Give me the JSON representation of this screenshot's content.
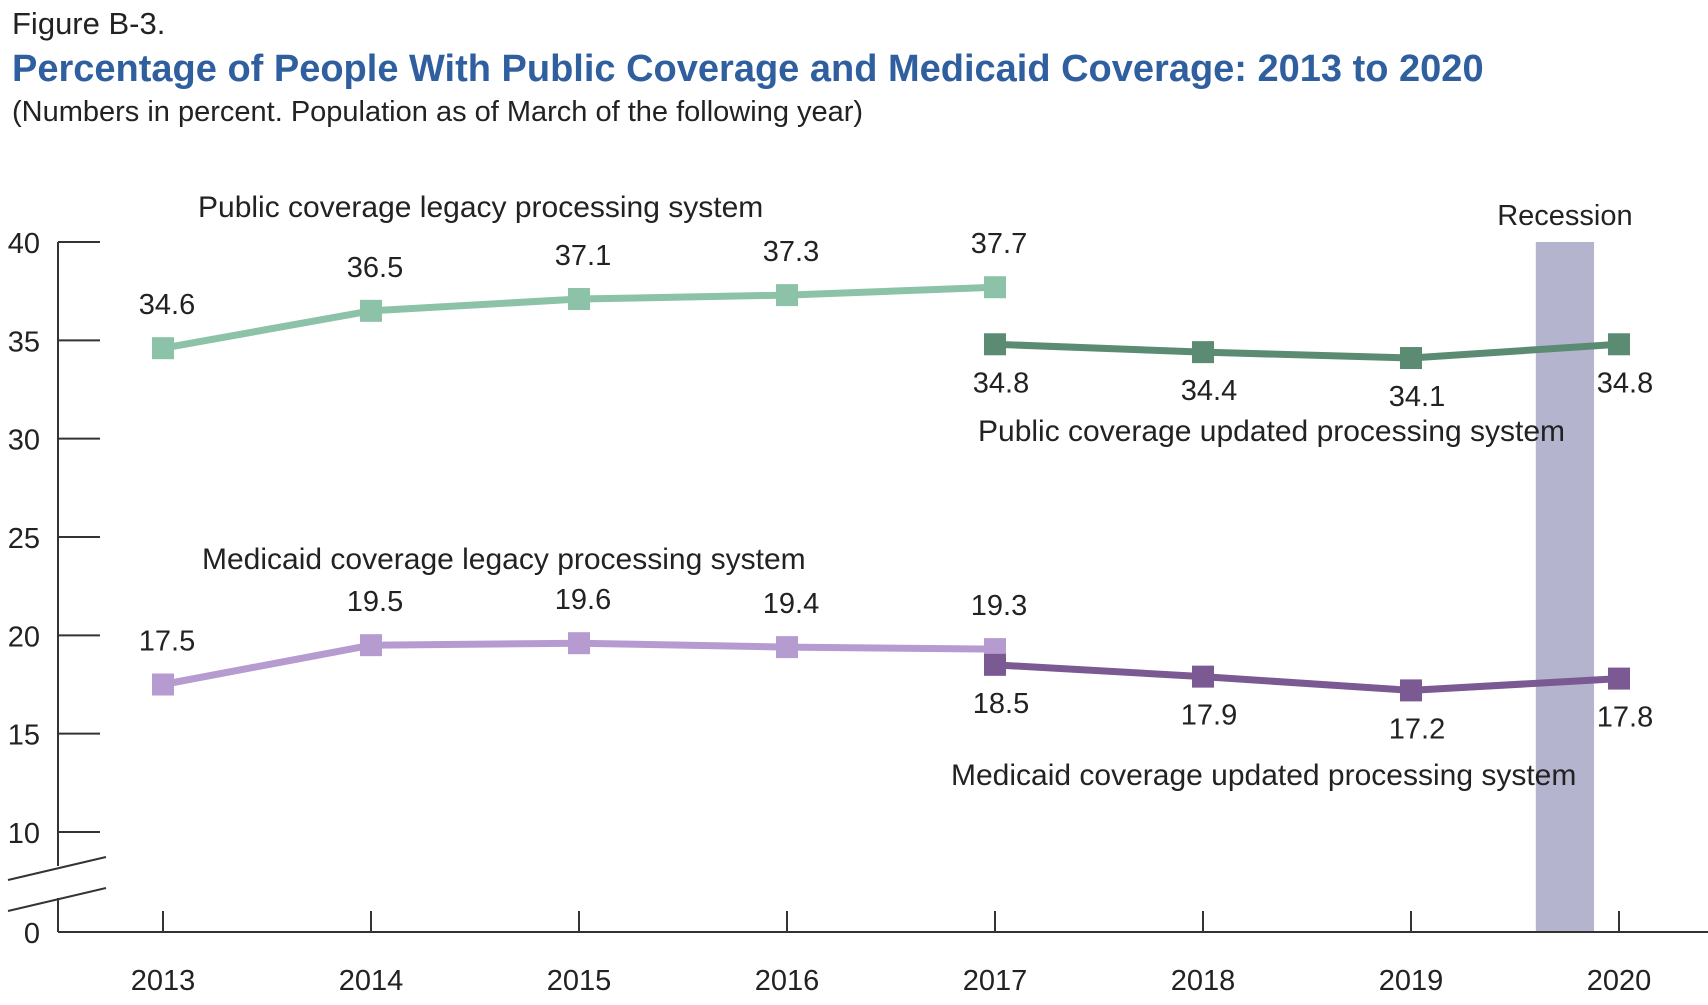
{
  "figure_label": "Figure B-3.",
  "title": "Percentage of People With Public Coverage and Medicaid Coverage: 2013 to 2020",
  "subtitle": "(Numbers in percent. Population as of March of the following year)",
  "colors": {
    "title": "#2f5f9e",
    "public_legacy": "#8cc2a8",
    "public_updated": "#5b8c73",
    "medicaid_legacy": "#b69bd0",
    "medicaid_updated": "#7b5a93",
    "recession": "#b4b4ce",
    "axis": "#333333"
  },
  "chart_data": {
    "type": "line",
    "categories": [
      "2013",
      "2014",
      "2015",
      "2016",
      "2017",
      "2018",
      "2019",
      "2020"
    ],
    "ylim": [
      0,
      40
    ],
    "yticks": [
      0,
      10,
      15,
      20,
      25,
      30,
      35,
      40
    ],
    "axis_break": true,
    "grid": false,
    "series": [
      {
        "name": "Public coverage legacy processing system",
        "x": [
          "2013",
          "2014",
          "2015",
          "2016",
          "2017"
        ],
        "values": [
          34.6,
          36.5,
          37.1,
          37.3,
          37.7
        ],
        "color_key": "public_legacy",
        "label_pos": "above"
      },
      {
        "name": "Public coverage updated processing system",
        "x": [
          "2017",
          "2018",
          "2019",
          "2020"
        ],
        "values": [
          34.8,
          34.4,
          34.1,
          34.8
        ],
        "color_key": "public_updated",
        "label_pos": "below"
      },
      {
        "name": "Medicaid coverage legacy processing system",
        "x": [
          "2013",
          "2014",
          "2015",
          "2016",
          "2017"
        ],
        "values": [
          17.5,
          19.5,
          19.6,
          19.4,
          19.3
        ],
        "color_key": "medicaid_legacy",
        "label_pos": "above"
      },
      {
        "name": "Medicaid coverage updated processing system",
        "x": [
          "2017",
          "2018",
          "2019",
          "2020"
        ],
        "values": [
          18.5,
          17.9,
          17.2,
          17.8
        ],
        "color_key": "medicaid_updated",
        "label_pos": "below"
      }
    ],
    "shaded_regions": [
      {
        "label": "Recession",
        "from": 2019.6,
        "to": 2019.88
      }
    ]
  }
}
